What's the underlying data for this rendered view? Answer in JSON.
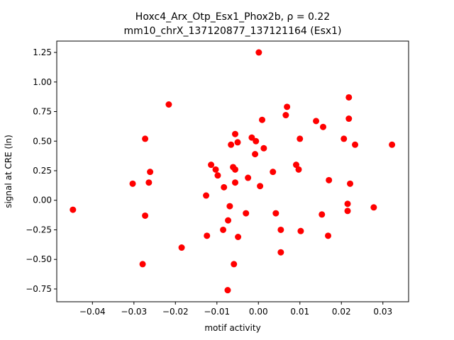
{
  "chart_data": {
    "type": "scatter",
    "title": "Hoxc4_Arx_Otp_Esx1_Phox2b, ρ = 0.22",
    "subtitle": "mm10_chrX_137120877_137121164 (Esx1)",
    "x_label": "motif activity",
    "y_label": "signal at CRE (ln)",
    "color": "#ff0000",
    "xlim": [
      -0.0486,
      0.0362
    ],
    "ylim": [
      -0.858,
      1.346
    ],
    "xticks": [
      {
        "value": -0.04,
        "label": "−0.04"
      },
      {
        "value": -0.03,
        "label": "−0.03"
      },
      {
        "value": -0.02,
        "label": "−0.02"
      },
      {
        "value": -0.01,
        "label": "−0.01"
      },
      {
        "value": 0,
        "label": "0.00"
      },
      0.01,
      0.02,
      0.03
    ],
    "yticks": [
      {
        "value": -0.75,
        "label": "−0.75"
      },
      {
        "value": -0.5,
        "label": "−0.50"
      },
      {
        "value": -0.25,
        "label": "−0.25"
      },
      {
        "value": 0,
        "label": "0.00"
      },
      0.25,
      {
        "value": 0.5,
        "label": "0.50"
      },
      0.75,
      {
        "value": 1,
        "label": "1.00"
      },
      1.25
    ],
    "x": [
      -0.0447,
      -0.0303,
      -0.0273,
      -0.0273,
      -0.0264,
      -0.0261,
      -0.0279,
      -0.0216,
      -0.0185,
      -0.0126,
      -0.0124,
      -0.0114,
      -0.0103,
      -0.0098,
      -0.0083,
      -0.0085,
      -0.0074,
      -0.0073,
      -0.0069,
      -0.0066,
      -0.0061,
      -0.0059,
      -0.0056,
      -0.0056,
      -0.0056,
      -0.005,
      -0.0049,
      -0.003,
      -0.0025,
      -0.0016,
      -0.0008,
      -0.0006,
      0.0001,
      0.0004,
      0.0009,
      0.0013,
      0.0035,
      0.0042,
      0.0054,
      0.0054,
      0.0066,
      0.0069,
      0.0091,
      0.0097,
      0.01,
      0.0102,
      0.0139,
      0.0153,
      0.0156,
      0.0168,
      0.017,
      0.0206,
      0.0215,
      0.0215,
      0.0218,
      0.0218,
      0.0221,
      0.0233,
      0.0278,
      0.0322
    ],
    "values": [
      -0.08,
      0.14,
      0.52,
      -0.13,
      0.15,
      0.24,
      -0.54,
      0.81,
      -0.4,
      0.04,
      -0.3,
      0.3,
      0.26,
      0.21,
      0.11,
      -0.25,
      -0.76,
      -0.17,
      -0.05,
      0.47,
      0.28,
      -0.54,
      0.56,
      0.26,
      0.15,
      0.49,
      -0.31,
      -0.11,
      0.19,
      0.53,
      0.39,
      0.5,
      1.25,
      0.12,
      0.68,
      0.44,
      0.24,
      -0.11,
      -0.25,
      -0.44,
      0.72,
      0.79,
      0.3,
      0.26,
      0.52,
      -0.26,
      0.67,
      -0.12,
      0.62,
      -0.3,
      0.17,
      0.52,
      -0.03,
      -0.09,
      0.87,
      0.69,
      0.14,
      0.47,
      -0.06,
      0.47
    ]
  }
}
